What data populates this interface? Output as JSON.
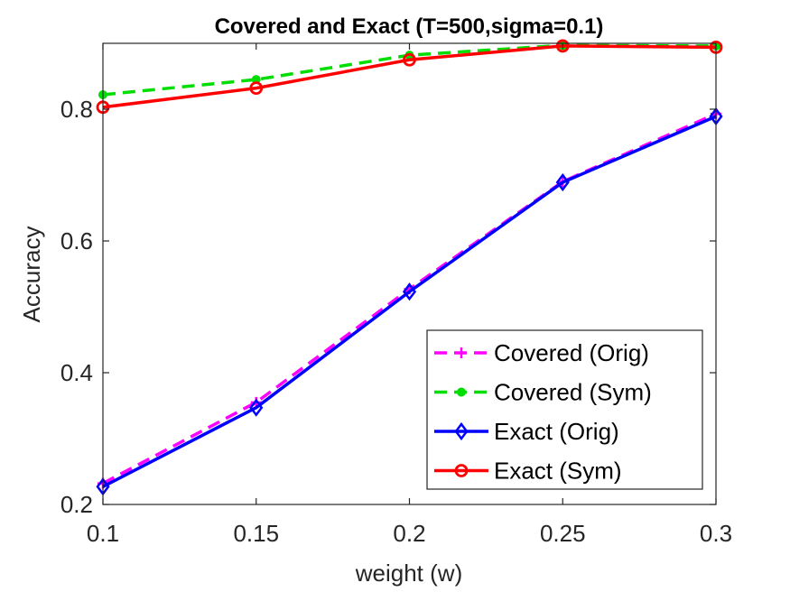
{
  "chart_data": {
    "type": "line",
    "title": "Covered and Exact (T=500,sigma=0.1)",
    "xlabel": "weight (w)",
    "ylabel": "Accuracy",
    "x": [
      0.1,
      0.15,
      0.2,
      0.25,
      0.3
    ],
    "x_tick_labels": [
      "0.1",
      "0.15",
      "0.2",
      "0.25",
      "0.3"
    ],
    "y_tick_labels": [
      "0.2",
      "0.4",
      "0.6",
      "0.8"
    ],
    "y_ticks": [
      0.2,
      0.4,
      0.6,
      0.8
    ],
    "xlim": [
      0.1,
      0.3
    ],
    "ylim": [
      0.2,
      0.9
    ],
    "legend_position": "bottom-right",
    "series": [
      {
        "name": "Covered (Orig)",
        "color": "#ff00ff",
        "dash": "dashed",
        "marker": "plus",
        "values": [
          0.232,
          0.355,
          0.527,
          0.69,
          0.793
        ]
      },
      {
        "name": "Covered (Sym)",
        "color": "#00dd00",
        "dash": "dashed",
        "marker": "dot",
        "values": [
          0.822,
          0.845,
          0.882,
          0.897,
          0.896
        ]
      },
      {
        "name": "Exact (Orig)",
        "color": "#0000ff",
        "dash": "solid",
        "marker": "diamond",
        "values": [
          0.227,
          0.347,
          0.523,
          0.689,
          0.789
        ]
      },
      {
        "name": "Exact (Sym)",
        "color": "#ff0000",
        "dash": "solid",
        "marker": "circle",
        "values": [
          0.803,
          0.832,
          0.875,
          0.896,
          0.894
        ]
      }
    ]
  }
}
